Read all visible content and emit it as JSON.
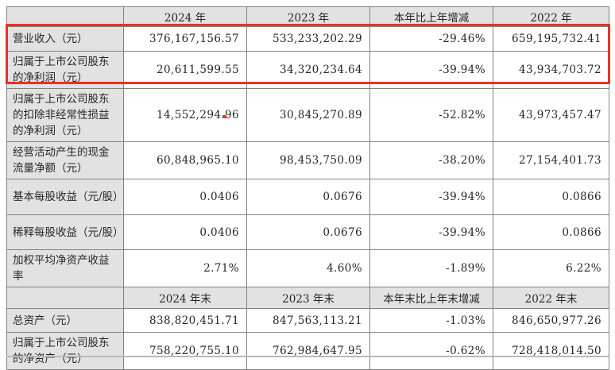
{
  "colors": {
    "highlight_red": "#e8322b",
    "header_bg": "#e2e2e2",
    "border_gray": "#828282",
    "text": "#262626"
  },
  "table": {
    "section1": {
      "columns": [
        "",
        "2024 年",
        "2023 年",
        "本年比上年增减",
        "2022 年"
      ],
      "rows": [
        {
          "label": "营业收入（元）",
          "values": [
            "376,167,156.57",
            "533,233,202.29",
            "-29.46%",
            "659,195,732.41"
          ],
          "highlighted": true
        },
        {
          "label": "归属于上市公司股东的净利润（元）",
          "values": [
            "20,611,599.55",
            "34,320,234.64",
            "-39.94%",
            "43,934,703.72"
          ],
          "highlighted": true
        },
        {
          "label": "归属于上市公司股东的扣除非经常性损益的净利润（元）",
          "values": [
            "14,552,294.96",
            "30,845,270.89",
            "-52.82%",
            "43,973,457.47"
          ],
          "highlighted": false
        },
        {
          "label": "经营活动产生的现金流量净额（元）",
          "values": [
            "60,848,965.10",
            "98,453,750.09",
            "-38.20%",
            "27,154,401.73"
          ],
          "highlighted": false
        },
        {
          "label": "基本每股收益（元/股）",
          "values": [
            "0.0406",
            "0.0676",
            "-39.94%",
            "0.0866"
          ],
          "highlighted": false
        },
        {
          "label": "稀释每股收益（元/股）",
          "values": [
            "0.0406",
            "0.0676",
            "-39.94%",
            "0.0866"
          ],
          "highlighted": false
        },
        {
          "label": "加权平均净资产收益率",
          "values": [
            "2.71%",
            "4.60%",
            "-1.89%",
            "6.22%"
          ],
          "highlighted": false
        }
      ]
    },
    "section2": {
      "columns": [
        "",
        "2024 年末",
        "2023 年末",
        "本年末比上年末增减",
        "2022 年末"
      ],
      "rows": [
        {
          "label": "总资产（元）",
          "values": [
            "838,820,451.71",
            "847,563,113.21",
            "-1.03%",
            "846,650,977.26"
          ],
          "highlighted": false
        },
        {
          "label": "归属于上市公司股东的净资产（元）",
          "values": [
            "758,220,755.10",
            "762,984,647.95",
            "-0.62%",
            "728,418,014.50"
          ],
          "highlighted": false
        }
      ]
    }
  },
  "annotations": {
    "highlight_box_rows": "营业收入（元）, 归属于上市公司股东的净利润（元）",
    "red_dot_marker": "below 14,552,294.96"
  }
}
